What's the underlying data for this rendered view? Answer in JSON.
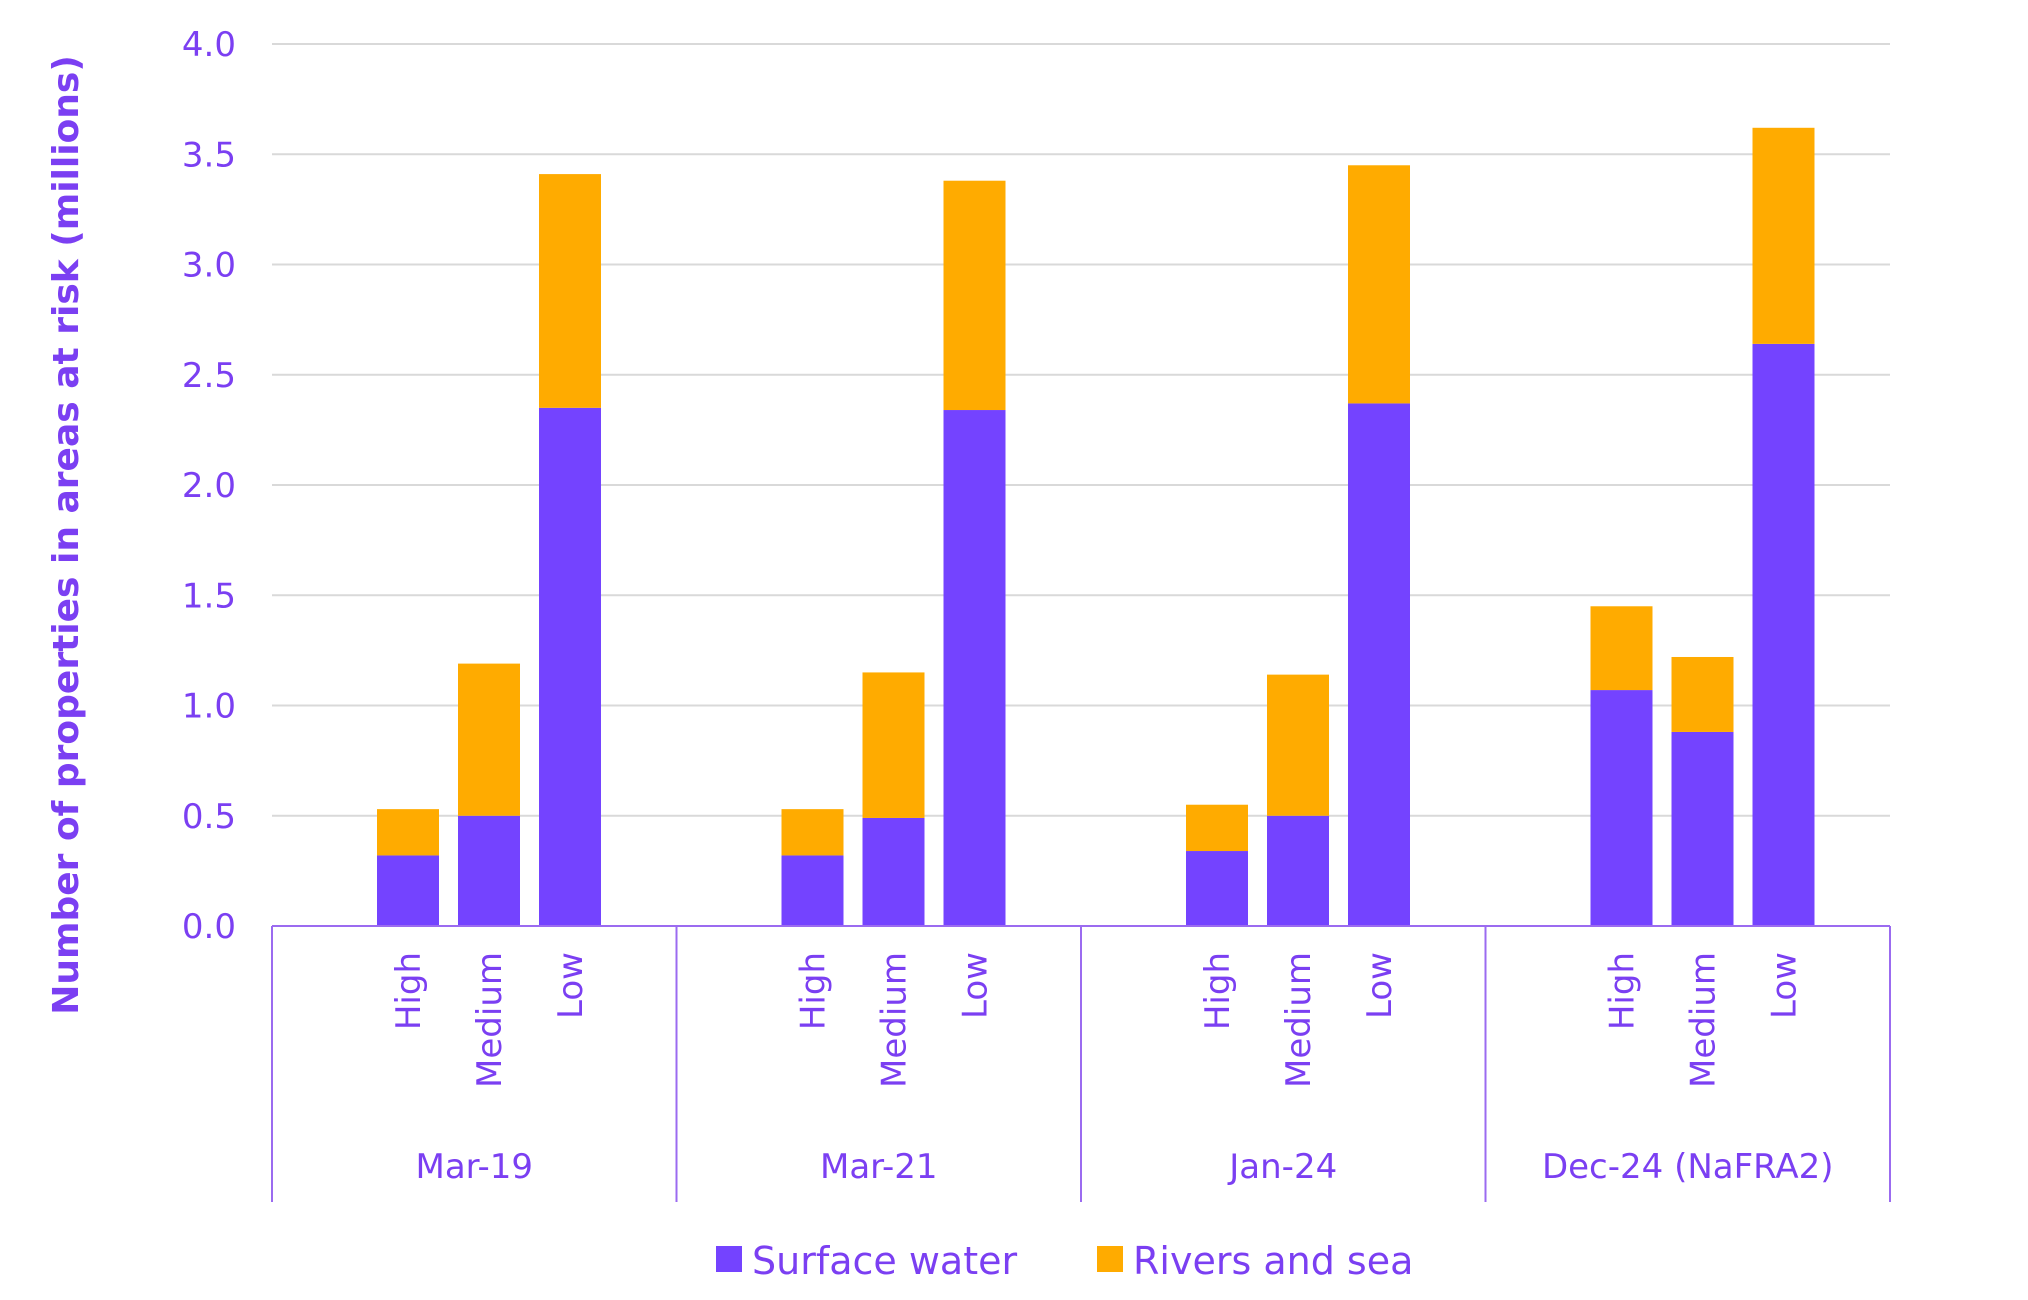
{
  "chart_data": {
    "type": "bar",
    "stacked": true,
    "ylabel": "Number of properties in areas at risk (millions)",
    "xlabel": "",
    "ylim": [
      0,
      4.0
    ],
    "yticks": [
      "0.0",
      "0.5",
      "1.0",
      "1.5",
      "2.0",
      "2.5",
      "3.0",
      "3.5",
      "4.0"
    ],
    "grid": true,
    "legend_position": "bottom",
    "groups": [
      {
        "label": "Mar-19",
        "categories": [
          "High",
          "Medium",
          "Low"
        ],
        "surface_water": [
          0.32,
          0.5,
          2.35
        ],
        "rivers_and_sea": [
          0.21,
          0.69,
          1.06
        ]
      },
      {
        "label": "Mar-21",
        "categories": [
          "High",
          "Medium",
          "Low"
        ],
        "surface_water": [
          0.32,
          0.49,
          2.34
        ],
        "rivers_and_sea": [
          0.21,
          0.66,
          1.04
        ]
      },
      {
        "label": "Jan-24",
        "categories": [
          "High",
          "Medium",
          "Low"
        ],
        "surface_water": [
          0.34,
          0.5,
          2.37
        ],
        "rivers_and_sea": [
          0.21,
          0.64,
          1.08
        ]
      },
      {
        "label": "Dec-24 (NaFRA2)",
        "categories": [
          "High",
          "Medium",
          "Low"
        ],
        "surface_water": [
          1.07,
          0.88,
          2.64
        ],
        "rivers_and_sea": [
          0.38,
          0.34,
          0.98
        ]
      }
    ],
    "series": [
      {
        "name": "Surface water",
        "key": "surface_water",
        "color": "#7443ff"
      },
      {
        "name": "Rivers and sea",
        "key": "rivers_and_sea",
        "color": "#ffab00"
      }
    ]
  },
  "colors": {
    "text": "#7b3ff2",
    "grid": "#d9d9d9",
    "axis": "#9b6bf0"
  }
}
